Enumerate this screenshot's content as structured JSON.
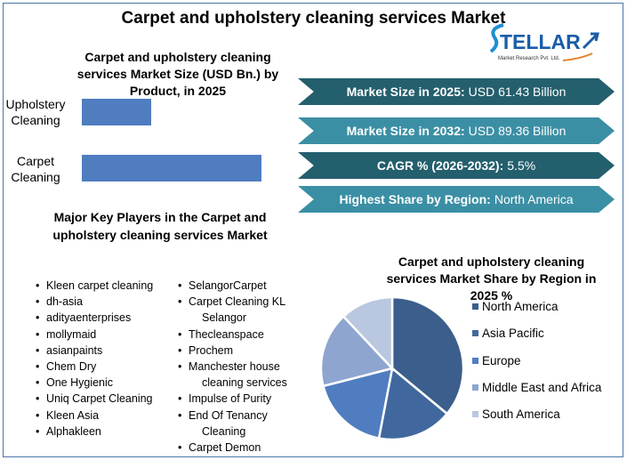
{
  "title": "Carpet and upholstery cleaning services Market",
  "logo": {
    "name": "STELLAR",
    "sub": "Market Research Pvt. Ltd."
  },
  "chart_data": [
    {
      "type": "bar",
      "orientation": "horizontal",
      "title": "Carpet and upholstery cleaning services Market Size (USD Bn.) by Product, in 2025",
      "categories": [
        "Upholstery Cleaning",
        "Carpet Cleaning"
      ],
      "values": [
        17.1,
        44.3
      ],
      "color": "#4f7dc0"
    },
    {
      "type": "pie",
      "title": "Carpet and upholstery cleaning services Market Share by Region in 2025 %",
      "categories": [
        "North America",
        "Asia Pacific",
        "Europe",
        "Middle East and Africa",
        "South America"
      ],
      "values": [
        36,
        17,
        18,
        17,
        12
      ],
      "colors": [
        "#3b5e8c",
        "#41689e",
        "#4f7dbf",
        "#8ea5cf",
        "#b9c7e0"
      ],
      "legend": "right"
    }
  ],
  "banners": [
    {
      "label": "Market Size in 2025:",
      "value": "USD 61.43 Billion"
    },
    {
      "label": "Market Size in 2032:",
      "value": "USD 89.36 Billion"
    },
    {
      "label": "CAGR % (2026-2032):",
      "value": "5.5%"
    },
    {
      "label": "Highest Share by Region:",
      "value": "North America"
    }
  ],
  "key_players": {
    "title": "Major Key Players in the Carpet and upholstery cleaning services Market",
    "col1": [
      "Kleen carpet cleaning",
      "dh-asia",
      "adityaenterprises",
      "mollymaid",
      "asianpaints",
      "Chem Dry",
      "One Hygienic",
      "Uniq Carpet Cleaning",
      "Kleen Asia",
      "Alphakleen"
    ],
    "col2": [
      [
        "SelangorCarpet"
      ],
      [
        "Carpet Cleaning KL",
        "Selangor"
      ],
      [
        "Thecleanspace"
      ],
      [
        "Prochem"
      ],
      [
        "Manchester house",
        "cleaning services"
      ],
      [
        "Impulse of Purity"
      ],
      [
        "End Of Tenancy",
        "Cleaning"
      ],
      [
        "Carpet Demon"
      ]
    ]
  }
}
